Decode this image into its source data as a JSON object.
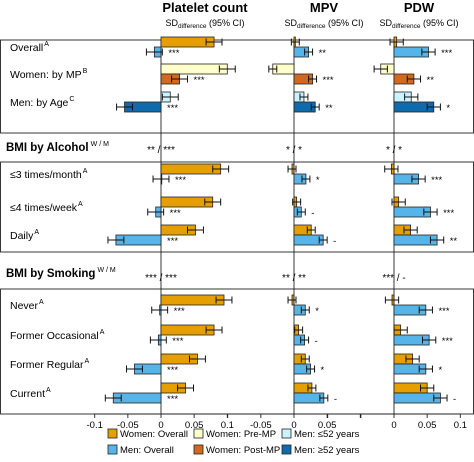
{
  "chart_data": {
    "type": "bar",
    "orientation": "horizontal",
    "grid": false,
    "legend_position": "bottom",
    "panels": [
      {
        "title": "Platelet count",
        "subtitle_main": "SD",
        "subtitle_sub": "difference",
        "subtitle_rest": " (95% CI)",
        "xlim": [
          -0.1,
          0.1
        ],
        "ticks": [
          -0.1,
          -0.05,
          0,
          0.05,
          0.1
        ]
      },
      {
        "title": "MPV",
        "subtitle_main": "SD",
        "subtitle_sub": "difference",
        "subtitle_rest": " (95% CI)",
        "xlim": [
          -0.1,
          0.1
        ],
        "ticks": [
          -0.1,
          -0.05,
          0,
          0.05,
          0.1
        ]
      },
      {
        "title": "PDW",
        "subtitle_main": "SD",
        "subtitle_sub": "difference",
        "subtitle_rest": " (95% CI)",
        "xlim": [
          -0.1,
          0.1
        ],
        "ticks": [
          -0.1,
          -0.05,
          0,
          0.05,
          0.1
        ]
      }
    ],
    "legend": [
      {
        "key": "wo",
        "label": "Women: Overall",
        "color": "#E69F00"
      },
      {
        "key": "mo",
        "label": "Men: Overall",
        "color": "#56B4E9"
      },
      {
        "key": "wpre",
        "label": "Women: Pre-MP",
        "color": "#FFFFCC"
      },
      {
        "key": "wpost",
        "label": "Women: Post-MP",
        "color": "#D2691E"
      },
      {
        "key": "my",
        "label": "Men: ≤52 years",
        "color": "#CCF2FF"
      },
      {
        "key": "mold",
        "label": "Men: ≥52 years",
        "color": "#0E6BAE"
      }
    ],
    "sections": [
      {
        "header": null,
        "stats": null,
        "rows": [
          {
            "label": "Overall",
            "sup": "A",
            "bars": [
              {
                "s": "wo",
                "v": [
                  0.08,
                  0.002,
                  0.004
                ]
              },
              {
                "s": "mo",
                "v": [
                  -0.01,
                  0.022,
                  0.052
                ],
                "sig": [
                  "***",
                  "**",
                  "***"
                ]
              }
            ]
          },
          {
            "label": "Women: by MP",
            "sup": "B",
            "bars": [
              {
                "s": "wpre",
                "v": [
                  0.1,
                  -0.032,
                  -0.02
                ]
              },
              {
                "s": "wpost",
                "v": [
                  0.028,
                  0.028,
                  0.03
                ],
                "sig": [
                  "***",
                  "***",
                  "**"
                ]
              }
            ]
          },
          {
            "label": "Men: by Age",
            "sup": "C",
            "bars": [
              {
                "s": "my",
                "v": [
                  0.014,
                  0.015,
                  0.026
                ]
              },
              {
                "s": "mold",
                "v": [
                  -0.055,
                  0.032,
                  0.06
                ],
                "sig": [
                  "***",
                  "**",
                  "*"
                ]
              }
            ]
          }
        ]
      },
      {
        "header": "BMI by Alcohol",
        "header_sup": "W / M",
        "stats": [
          "** / ***",
          "* / *",
          "* / *"
        ],
        "rows": [
          {
            "label": "≤3 times/month",
            "sup": "A",
            "bars": [
              {
                "s": "wo",
                "v": [
                  0.09,
                  -0.003,
                  -0.004
                ]
              },
              {
                "s": "mo",
                "v": [
                  0.0,
                  0.018,
                  0.037
                ],
                "sig": [
                  "***",
                  "*",
                  "***"
                ]
              }
            ]
          },
          {
            "label": "≤4 times/week",
            "sup": "A",
            "bars": [
              {
                "s": "wo",
                "v": [
                  0.078,
                  0.004,
                  0.007
                ]
              },
              {
                "s": "mo",
                "v": [
                  -0.008,
                  0.011,
                  0.055
                ],
                "sig": [
                  "***",
                  "-",
                  "***"
                ]
              }
            ]
          },
          {
            "label": "Daily",
            "sup": "A",
            "bars": [
              {
                "s": "wo",
                "v": [
                  0.052,
                  0.026,
                  0.025
                ]
              },
              {
                "s": "mo",
                "v": [
                  -0.068,
                  0.044,
                  0.065
                ],
                "sig": [
                  "***",
                  "-",
                  "**"
                ]
              }
            ]
          }
        ]
      },
      {
        "header": "BMI by Smoking",
        "header_sup": "W / M",
        "stats": [
          "*** / ***",
          "** / **",
          "*** / -"
        ],
        "rows": [
          {
            "label": "Never",
            "sup": "A",
            "bars": [
              {
                "s": "wo",
                "v": [
                  0.095,
                  -0.003,
                  -0.003
                ]
              },
              {
                "s": "mo",
                "v": [
                  -0.002,
                  0.017,
                  0.048
                ],
                "sig": [
                  "***",
                  "*",
                  "***"
                ]
              }
            ]
          },
          {
            "label": "Former Occasional",
            "sup": "A",
            "bars": [
              {
                "s": "wo",
                "v": [
                  0.08,
                  0.007,
                  0.01
                ]
              },
              {
                "s": "mo",
                "v": [
                  -0.004,
                  0.016,
                  0.053
                ],
                "sig": [
                  "***",
                  "-",
                  "***"
                ]
              }
            ]
          },
          {
            "label": "Former Regular",
            "sup": "A",
            "bars": [
              {
                "s": "wo",
                "v": [
                  0.055,
                  0.017,
                  0.028
                ]
              },
              {
                "s": "mo",
                "v": [
                  -0.04,
                  0.025,
                  0.048
                ],
                "sig": [
                  "***",
                  "*",
                  "*"
                ]
              }
            ]
          },
          {
            "label": "Current",
            "sup": "A",
            "bars": [
              {
                "s": "wo",
                "v": [
                  0.037,
                  0.027,
                  0.05
                ]
              },
              {
                "s": "mo",
                "v": [
                  -0.072,
                  0.045,
                  0.07
                ],
                "sig": [
                  "***",
                  "-",
                  "-"
                ]
              }
            ]
          }
        ]
      }
    ]
  }
}
